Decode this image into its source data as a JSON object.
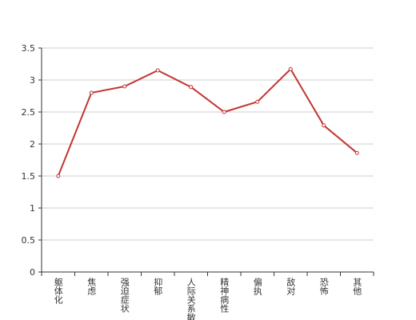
{
  "chart_data": {
    "type": "line",
    "categories": [
      "躯体化",
      "焦虑",
      "强迫症状",
      "抑郁",
      "人际关系敏感",
      "精神病性",
      "偏执",
      "敌对",
      "恐怖",
      "其他"
    ],
    "series": [
      {
        "color": "#c23531",
        "values": [
          1.5,
          2.8,
          2.9,
          3.15,
          2.89,
          2.5,
          2.66,
          3.17,
          2.29,
          1.86
        ]
      }
    ],
    "ylim": [
      0,
      3.5
    ],
    "yticks": [
      0,
      0.5,
      1,
      1.5,
      2,
      2.5,
      3,
      3.5
    ],
    "grid": true
  }
}
